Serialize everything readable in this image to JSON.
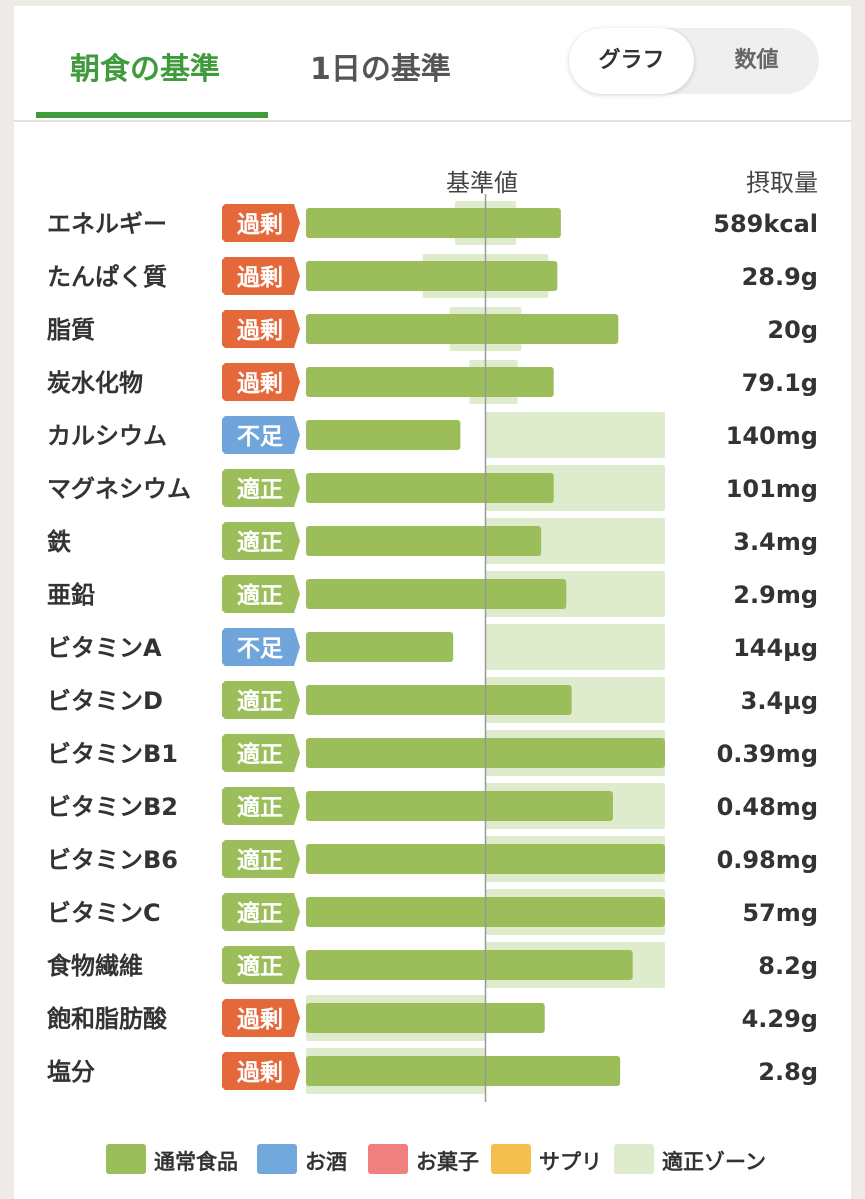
{
  "tabs": [
    {
      "label": "朝食の基準",
      "active": true
    },
    {
      "label": "1日の基準",
      "active": false
    }
  ],
  "toggle": {
    "graph_label": "グラフ",
    "value_label": "数値",
    "selected": "graph"
  },
  "colors": {
    "bar": "#9bbe5b",
    "zone": "#dfebcd",
    "baseline": "#999999",
    "status_excess": "#e4683a",
    "status_lack": "#6fa5da",
    "status_ok": "#9bbe5b",
    "legend_alcohol": "#72a9dd",
    "legend_sweets": "#ee807f",
    "legend_supplement": "#f4bf4f"
  },
  "chart_data": {
    "type": "bar",
    "orientation": "horizontal",
    "baseline_label": "基準値",
    "value_header": "摂取量",
    "baseline_percent": 100,
    "xlim": [
      0,
      200
    ],
    "grid": false,
    "rows": [
      {
        "name": "エネルギー",
        "status": "過剰",
        "kind": "excess",
        "value_percent": 142,
        "zone_percent": [
          83,
          117
        ],
        "amount": "589kcal"
      },
      {
        "name": "たんぱく質",
        "status": "過剰",
        "kind": "excess",
        "value_percent": 140,
        "zone_percent": [
          65,
          135
        ],
        "amount": "28.9g"
      },
      {
        "name": "脂質",
        "status": "過剰",
        "kind": "excess",
        "value_percent": 174,
        "zone_percent": [
          80,
          120
        ],
        "amount": "20g"
      },
      {
        "name": "炭水化物",
        "status": "過剰",
        "kind": "excess",
        "value_percent": 138,
        "zone_percent": [
          91,
          118
        ],
        "amount": "79.1g"
      },
      {
        "name": "カルシウム",
        "status": "不足",
        "kind": "lack",
        "value_percent": 86,
        "zone_percent": [
          100,
          200
        ],
        "amount": "140mg"
      },
      {
        "name": "マグネシウム",
        "status": "適正",
        "kind": "ok",
        "value_percent": 138,
        "zone_percent": [
          100,
          200
        ],
        "amount": "101mg"
      },
      {
        "name": "鉄",
        "status": "適正",
        "kind": "ok",
        "value_percent": 131,
        "zone_percent": [
          100,
          200
        ],
        "amount": "3.4mg"
      },
      {
        "name": "亜鉛",
        "status": "適正",
        "kind": "ok",
        "value_percent": 145,
        "zone_percent": [
          100,
          200
        ],
        "amount": "2.9mg"
      },
      {
        "name": "ビタミンA",
        "status": "不足",
        "kind": "lack",
        "value_percent": 82,
        "zone_percent": [
          100,
          200
        ],
        "amount": "144µg"
      },
      {
        "name": "ビタミンD",
        "status": "適正",
        "kind": "ok",
        "value_percent": 148,
        "zone_percent": [
          100,
          200
        ],
        "amount": "3.4µg"
      },
      {
        "name": "ビタミンB1",
        "status": "適正",
        "kind": "ok",
        "value_percent": 200,
        "zone_percent": [
          100,
          200
        ],
        "amount": "0.39mg"
      },
      {
        "name": "ビタミンB2",
        "status": "適正",
        "kind": "ok",
        "value_percent": 171,
        "zone_percent": [
          100,
          200
        ],
        "amount": "0.48mg"
      },
      {
        "name": "ビタミンB6",
        "status": "適正",
        "kind": "ok",
        "value_percent": 200,
        "zone_percent": [
          100,
          200
        ],
        "amount": "0.98mg"
      },
      {
        "name": "ビタミンC",
        "status": "適正",
        "kind": "ok",
        "value_percent": 200,
        "zone_percent": [
          100,
          200
        ],
        "amount": "57mg"
      },
      {
        "name": "食物繊維",
        "status": "適正",
        "kind": "ok",
        "value_percent": 182,
        "zone_percent": [
          100,
          200
        ],
        "amount": "8.2g"
      },
      {
        "name": "飽和脂肪酸",
        "status": "過剰",
        "kind": "excess",
        "value_percent": 133,
        "zone_percent": [
          0,
          100
        ],
        "amount": "4.29g"
      },
      {
        "name": "塩分",
        "status": "過剰",
        "kind": "excess",
        "value_percent": 175,
        "zone_percent": [
          0,
          100
        ],
        "amount": "2.8g"
      }
    ]
  },
  "legend": [
    {
      "label": "通常食品",
      "color": "#9bbe5b"
    },
    {
      "label": "お酒",
      "color": "#72a9dd"
    },
    {
      "label": "お菓子",
      "color": "#ee807f"
    },
    {
      "label": "サプリ",
      "color": "#f4bf4f"
    },
    {
      "label": "適正ゾーン",
      "color": "#dfebcd"
    }
  ]
}
